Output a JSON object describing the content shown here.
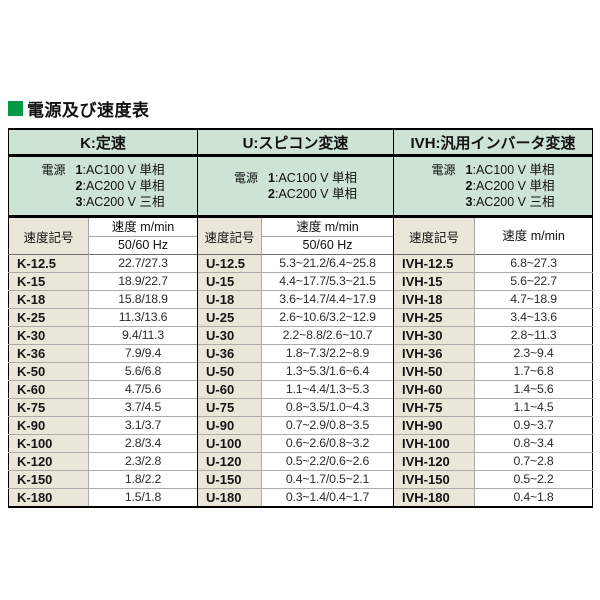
{
  "title": {
    "text": "電源及び速度表",
    "bullet_color": "#009a44"
  },
  "colors": {
    "header_green": "#cde3d4",
    "cell_beige": "#eae6d9",
    "border_dark": "#000000",
    "border_light": "#ababab",
    "title_green": "#009a44"
  },
  "table": {
    "groups": [
      {
        "id": "k",
        "header": "K:定速",
        "power": {
          "label": "電源",
          "lines": [
            {
              "num": "1",
              "desc": ":AC100 V 単相"
            },
            {
              "num": "2",
              "desc": ":AC200 V 単相"
            },
            {
              "num": "3",
              "desc": ":AC200 V 三相"
            }
          ]
        },
        "sign_header": "速度記号",
        "speed_header": "速度 m/min",
        "speed_subheader": "50/60 Hz"
      },
      {
        "id": "u",
        "header": "U:スピコン変速",
        "power": {
          "label": "電源",
          "lines": [
            {
              "num": "1",
              "desc": ":AC100 V 単相"
            },
            {
              "num": "2",
              "desc": ":AC200 V 単相"
            }
          ]
        },
        "sign_header": "速度記号",
        "speed_header": "速度 m/min",
        "speed_subheader": "50/60 Hz"
      },
      {
        "id": "ivh",
        "header": "IVH:汎用インバータ変速",
        "power": {
          "label": "電源",
          "lines": [
            {
              "num": "1",
              "desc": ":AC100 V 単相"
            },
            {
              "num": "2",
              "desc": ":AC200 V 単相"
            },
            {
              "num": "3",
              "desc": ":AC200 V 三相"
            }
          ]
        },
        "sign_header": "速度記号",
        "speed_header": "速度 m/min"
      }
    ],
    "rows": [
      [
        "K-12.5",
        "22.7/27.3",
        "U-12.5",
        "5.3~21.2/6.4~25.8",
        "IVH-12.5",
        "6.8~27.3"
      ],
      [
        "K-15",
        "18.9/22.7",
        "U-15",
        "4.4~17.7/5.3~21.5",
        "IVH-15",
        "5.6~22.7"
      ],
      [
        "K-18",
        "15.8/18.9",
        "U-18",
        "3.6~14.7/4.4~17.9",
        "IVH-18",
        "4.7~18.9"
      ],
      [
        "K-25",
        "11.3/13.6",
        "U-25",
        "2.6~10.6/3.2~12.9",
        "IVH-25",
        "3.4~13.6"
      ],
      [
        "K-30",
        "9.4/11.3",
        "U-30",
        "2.2~8.8/2.6~10.7",
        "IVH-30",
        "2.8~11.3"
      ],
      [
        "K-36",
        "7.9/9.4",
        "U-36",
        "1.8~7.3/2.2~8.9",
        "IVH-36",
        "2.3~9.4"
      ],
      [
        "K-50",
        "5.6/6.8",
        "U-50",
        "1.3~5.3/1.6~6.4",
        "IVH-50",
        "1.7~6.8"
      ],
      [
        "K-60",
        "4.7/5.6",
        "U-60",
        "1.1~4.4/1.3~5.3",
        "IVH-60",
        "1.4~5.6"
      ],
      [
        "K-75",
        "3.7/4.5",
        "U-75",
        "0.8~3.5/1.0~4.3",
        "IVH-75",
        "1.1~4.5"
      ],
      [
        "K-90",
        "3.1/3.7",
        "U-90",
        "0.7~2.9/0.8~3.5",
        "IVH-90",
        "0.9~3.7"
      ],
      [
        "K-100",
        "2.8/3.4",
        "U-100",
        "0.6~2.6/0.8~3.2",
        "IVH-100",
        "0.8~3.4"
      ],
      [
        "K-120",
        "2.3/2.8",
        "U-120",
        "0.5~2.2/0.6~2.6",
        "IVH-120",
        "0.7~2.8"
      ],
      [
        "K-150",
        "1.8/2.2",
        "U-150",
        "0.4~1.7/0.5~2.1",
        "IVH-150",
        "0.5~2.2"
      ],
      [
        "K-180",
        "1.5/1.8",
        "U-180",
        "0.3~1.4/0.4~1.7",
        "IVH-180",
        "0.4~1.8"
      ]
    ]
  }
}
